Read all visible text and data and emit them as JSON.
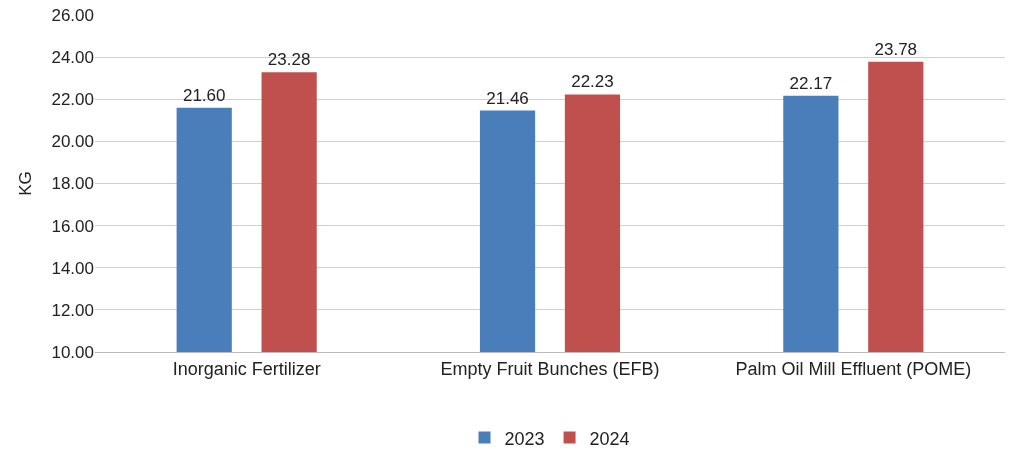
{
  "chart_data": {
    "type": "bar",
    "ylabel": "KG",
    "categories": [
      "Inorganic Fertilizer",
      "Empty Fruit Bunches (EFB)",
      "Palm Oil Mill Effluent (POME)"
    ],
    "series": [
      {
        "name": "2023",
        "color": "#4a7ebb",
        "values": [
          21.6,
          21.46,
          22.17
        ],
        "value_labels": [
          "21.60",
          "21.46",
          "22.17"
        ]
      },
      {
        "name": "2024",
        "color": "#c0504d",
        "values": [
          23.28,
          22.23,
          23.78
        ],
        "value_labels": [
          "23.28",
          "22.23",
          "23.78"
        ]
      }
    ],
    "ylim": [
      10,
      26
    ],
    "yticks": [
      {
        "value": 10,
        "label": "10.00"
      },
      {
        "value": 12,
        "label": "12.00"
      },
      {
        "value": 14,
        "label": "14.00"
      },
      {
        "value": 16,
        "label": "16.00"
      },
      {
        "value": 18,
        "label": "18.00"
      },
      {
        "value": 20,
        "label": "20.00"
      },
      {
        "value": 22,
        "label": "22.00"
      },
      {
        "value": 24,
        "label": "24.00"
      },
      {
        "value": 26,
        "label": "26.00"
      }
    ],
    "grid": "y",
    "legend": "bottom"
  }
}
